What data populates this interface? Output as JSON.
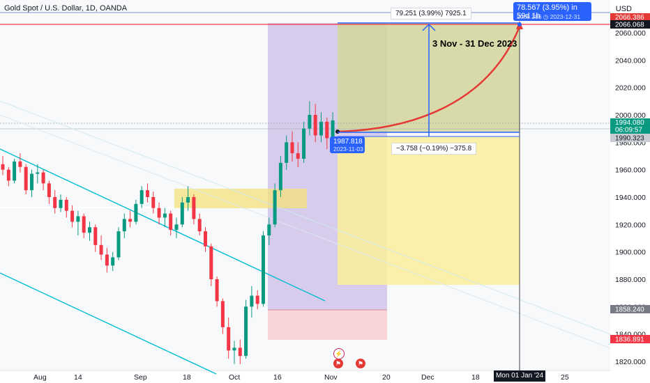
{
  "header": {
    "title": "Gold Spot / U.S. Dollar, 1D, OANDA",
    "currency": "USD"
  },
  "colors": {
    "up": "#089981",
    "down": "#f23645",
    "accent": "#2962ff",
    "projection": "#e53935",
    "channel": "#00bcd4",
    "current_price_tag": "#089981"
  },
  "price_axis": {
    "ticks": [
      "2060.000",
      "2040.000",
      "2020.000",
      "2000.000",
      "1980.000",
      "1960.000",
      "1940.000",
      "1920.000",
      "1900.000",
      "1880.000",
      "1860.000",
      "1840.000",
      "1820.000"
    ],
    "tags": {
      "target_top": "2066.386",
      "target": "2066.068",
      "current_price": "1994.080",
      "countdown": "06:09:57",
      "entry": "1990.323",
      "lower_level": "1858.240",
      "stop_level": "1836.891"
    }
  },
  "time_axis": {
    "ticks": [
      "Aug",
      "14",
      "Sep",
      "18",
      "Oct",
      "16",
      "Nov",
      "20",
      "Dec",
      "18",
      "25"
    ],
    "crosshair_date": "Mon 01 Jan '24"
  },
  "measure_top": "79.251 (3.99%) 7925.1",
  "measure_bottom": "−3.758 (−0.19%) −375.8",
  "range_tooltip": {
    "line1": "78.567 (3.95%) in 59d 1h",
    "line2": "2066.386 ◷ 2023-12-31"
  },
  "entry_tooltip": {
    "line1": "1987.818",
    "line2": "2023-11-03"
  },
  "annotation": "3 Nov  - 31 Dec 2023",
  "icons": [
    "lightning-event-icon",
    "us-flag-event-icon",
    "us-flag-event-icon"
  ],
  "chart_data": {
    "type": "candlestick",
    "symbol": "Gold Spot / U.S. Dollar",
    "interval": "1D",
    "ylim": [
      1815,
      2075
    ],
    "ohlc": [
      [
        1964,
        1970,
        1956,
        1960
      ],
      [
        1960,
        1962,
        1948,
        1952
      ],
      [
        1952,
        1968,
        1950,
        1966
      ],
      [
        1966,
        1972,
        1958,
        1962
      ],
      [
        1962,
        1964,
        1942,
        1945
      ],
      [
        1945,
        1960,
        1940,
        1957
      ],
      [
        1957,
        1964,
        1950,
        1958
      ],
      [
        1958,
        1960,
        1945,
        1950
      ],
      [
        1950,
        1952,
        1935,
        1940
      ],
      [
        1940,
        1945,
        1928,
        1932
      ],
      [
        1932,
        1942,
        1929,
        1938
      ],
      [
        1938,
        1940,
        1925,
        1930
      ],
      [
        1930,
        1934,
        1918,
        1922
      ],
      [
        1922,
        1930,
        1912,
        1926
      ],
      [
        1926,
        1928,
        1910,
        1914
      ],
      [
        1914,
        1922,
        1908,
        1918
      ],
      [
        1918,
        1920,
        1900,
        1905
      ],
      [
        1905,
        1912,
        1894,
        1898
      ],
      [
        1898,
        1903,
        1885,
        1890
      ],
      [
        1890,
        1900,
        1886,
        1896
      ],
      [
        1896,
        1918,
        1894,
        1915
      ],
      [
        1915,
        1928,
        1910,
        1924
      ],
      [
        1924,
        1930,
        1918,
        1922
      ],
      [
        1922,
        1938,
        1920,
        1935
      ],
      [
        1935,
        1948,
        1932,
        1945
      ],
      [
        1945,
        1950,
        1936,
        1940
      ],
      [
        1940,
        1944,
        1928,
        1932
      ],
      [
        1932,
        1936,
        1920,
        1925
      ],
      [
        1925,
        1932,
        1918,
        1928
      ],
      [
        1928,
        1930,
        1912,
        1916
      ],
      [
        1916,
        1925,
        1910,
        1920
      ],
      [
        1920,
        1940,
        1918,
        1936
      ],
      [
        1936,
        1948,
        1930,
        1940
      ],
      [
        1940,
        1942,
        1920,
        1924
      ],
      [
        1924,
        1928,
        1912,
        1915
      ],
      [
        1915,
        1918,
        1900,
        1904
      ],
      [
        1904,
        1906,
        1875,
        1880
      ],
      [
        1880,
        1882,
        1860,
        1864
      ],
      [
        1864,
        1866,
        1840,
        1845
      ],
      [
        1845,
        1852,
        1822,
        1828
      ],
      [
        1828,
        1835,
        1818,
        1830
      ],
      [
        1830,
        1836,
        1818,
        1824
      ],
      [
        1824,
        1865,
        1822,
        1860
      ],
      [
        1860,
        1875,
        1852,
        1868
      ],
      [
        1868,
        1872,
        1858,
        1862
      ],
      [
        1862,
        1915,
        1860,
        1912
      ],
      [
        1912,
        1925,
        1905,
        1920
      ],
      [
        1920,
        1950,
        1918,
        1945
      ],
      [
        1945,
        1970,
        1940,
        1965
      ],
      [
        1965,
        1985,
        1960,
        1980
      ],
      [
        1980,
        1988,
        1966,
        1972
      ],
      [
        1972,
        1980,
        1962,
        1968
      ],
      [
        1968,
        1995,
        1965,
        1990
      ],
      [
        1990,
        2010,
        1985,
        2000
      ],
      [
        2000,
        2008,
        1980,
        1985
      ],
      [
        1985,
        2002,
        1980,
        1995
      ],
      [
        1995,
        1998,
        1975,
        1983
      ],
      [
        1983,
        2002,
        1980,
        1996
      ]
    ]
  }
}
